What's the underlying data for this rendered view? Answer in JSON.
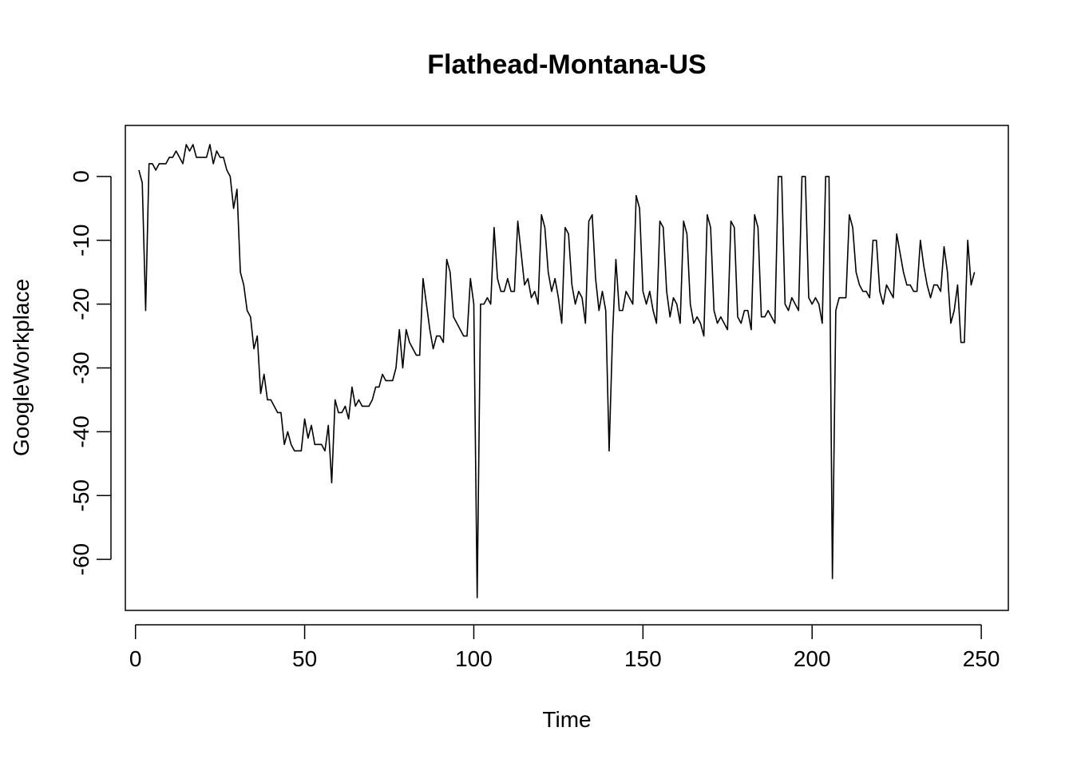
{
  "chart_data": {
    "type": "line",
    "title": "Flathead-Montana-US",
    "xlabel": "Time",
    "ylabel": "GoogleWorkplace",
    "xlim": [
      -3,
      258
    ],
    "ylim": [
      -68,
      8
    ],
    "x_ticks": [
      0,
      50,
      100,
      150,
      200,
      250
    ],
    "y_ticks": [
      0,
      -10,
      -20,
      -30,
      -40,
      -50,
      -60
    ],
    "grid": false,
    "legend": "none",
    "line_color": "#000000",
    "x_start": 1,
    "values": [
      1,
      -1,
      -21,
      2,
      2,
      1,
      2,
      2,
      2,
      3,
      3,
      4,
      3,
      2,
      5,
      4,
      5,
      3,
      3,
      3,
      3,
      5,
      2,
      4,
      3,
      3,
      1,
      0,
      -5,
      -2,
      -15,
      -17,
      -21,
      -22,
      -27,
      -25,
      -34,
      -31,
      -35,
      -35,
      -36,
      -37,
      -37,
      -42,
      -40,
      -42,
      -43,
      -43,
      -43,
      -38,
      -41,
      -39,
      -42,
      -42,
      -42,
      -43,
      -39,
      -48,
      -35,
      -37,
      -37,
      -36,
      -38,
      -33,
      -36,
      -35,
      -36,
      -36,
      -36,
      -35,
      -33,
      -33,
      -31,
      -32,
      -32,
      -32,
      -30,
      -24,
      -30,
      -24,
      -26,
      -27,
      -28,
      -28,
      -16,
      -20,
      -24,
      -27,
      -25,
      -25,
      -26,
      -13,
      -15,
      -22,
      -23,
      -24,
      -25,
      -25,
      -16,
      -20,
      -66,
      -20,
      -20,
      -19,
      -20,
      -8,
      -16,
      -18,
      -18,
      -16,
      -18,
      -18,
      -7,
      -12,
      -17,
      -16,
      -19,
      -18,
      -20,
      -6,
      -8,
      -15,
      -18,
      -16,
      -19,
      -23,
      -8,
      -9,
      -17,
      -20,
      -18,
      -19,
      -23,
      -7,
      -6,
      -16,
      -21,
      -18,
      -21,
      -43,
      -25,
      -13,
      -21,
      -21,
      -18,
      -19,
      -20,
      -3,
      -5,
      -18,
      -20,
      -18,
      -21,
      -23,
      -7,
      -8,
      -18,
      -22,
      -19,
      -20,
      -23,
      -7,
      -9,
      -20,
      -23,
      -22,
      -23,
      -25,
      -6,
      -8,
      -21,
      -23,
      -22,
      -23,
      -24,
      -7,
      -8,
      -22,
      -23,
      -21,
      -21,
      -24,
      -6,
      -8,
      -22,
      -22,
      -21,
      -22,
      -23,
      0,
      0,
      -20,
      -21,
      -19,
      -20,
      -21,
      0,
      0,
      -19,
      -20,
      -19,
      -20,
      -23,
      0,
      0,
      -63,
      -21,
      -19,
      -19,
      -19,
      -6,
      -8,
      -15,
      -17,
      -18,
      -18,
      -19,
      -10,
      -10,
      -18,
      -20,
      -17,
      -18,
      -19,
      -9,
      -12,
      -15,
      -17,
      -17,
      -18,
      -18,
      -10,
      -14,
      -17,
      -19,
      -17,
      -17,
      -18,
      -11,
      -15,
      -23,
      -21,
      -17,
      -26,
      -26,
      -10,
      -17,
      -15
    ]
  }
}
